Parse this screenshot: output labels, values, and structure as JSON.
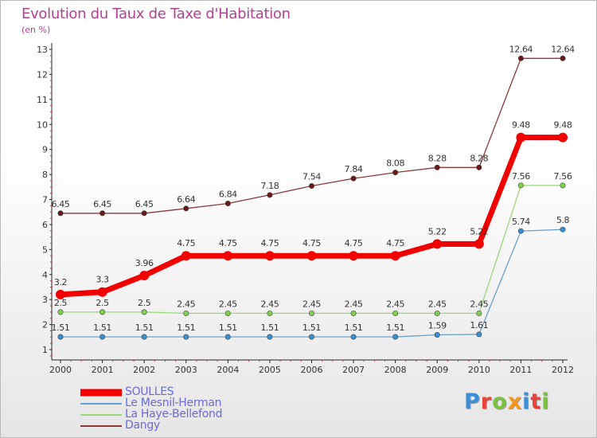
{
  "title": "Evolution du Taux de Taxe d'Habitation",
  "subtitle": "(en %)",
  "logo": {
    "text": "Proxiti",
    "letter_colors": [
      "#3c8fd6",
      "#e8423a",
      "#7cc242",
      "#f39a1e",
      "#3c8fd6",
      "#e8423a",
      "#7cc242"
    ]
  },
  "chart_data": {
    "type": "line",
    "title": "Evolution du Taux de Taxe d'Habitation",
    "ylabel": "(en %)",
    "xlabel": "",
    "x": [
      "2000",
      "2001",
      "2002",
      "2003",
      "2004",
      "2005",
      "2006",
      "2007",
      "2008",
      "2009",
      "2010",
      "2011",
      "2012"
    ],
    "ylim": [
      1,
      13
    ],
    "yticks": [
      1,
      2,
      3,
      4,
      5,
      6,
      7,
      8,
      9,
      10,
      11,
      12,
      13
    ],
    "grid": false,
    "legend_position": "bottom-left",
    "series": [
      {
        "name": "SOULLES",
        "color": "#f20000",
        "values": [
          3.2,
          3.3,
          3.96,
          4.75,
          4.75,
          4.75,
          4.75,
          4.75,
          4.75,
          5.22,
          5.22,
          9.48,
          9.48
        ],
        "labels": [
          "3.2",
          "3.3",
          "3.96",
          "4.75",
          "4.75",
          "4.75",
          "4.75",
          "4.75",
          "4.75",
          "5.22",
          "5.22",
          "9.48",
          "9.48"
        ]
      },
      {
        "name": "Le Mesnil-Herman",
        "color": "#6aa0cc",
        "values": [
          1.51,
          1.51,
          1.51,
          1.51,
          1.51,
          1.51,
          1.51,
          1.51,
          1.51,
          1.59,
          1.61,
          5.74,
          5.8
        ],
        "labels": [
          "1.51",
          "1.51",
          "1.51",
          "1.51",
          "1.51",
          "1.51",
          "1.51",
          "1.51",
          "1.51",
          "1.59",
          "1.61",
          "5.74",
          "5.8"
        ]
      },
      {
        "name": "La Haye-Bellefond",
        "color": "#9ad67a",
        "values": [
          2.5,
          2.5,
          2.5,
          2.45,
          2.45,
          2.45,
          2.45,
          2.45,
          2.45,
          2.45,
          2.45,
          7.56,
          7.56
        ],
        "labels": [
          "2.5",
          "2.5",
          "2.5",
          "2.45",
          "2.45",
          "2.45",
          "2.45",
          "2.45",
          "2.45",
          "2.45",
          "2.45",
          "7.56",
          "7.56"
        ]
      },
      {
        "name": "Dangy",
        "color": "#8a3838",
        "values": [
          6.45,
          6.45,
          6.45,
          6.64,
          6.84,
          7.18,
          7.54,
          7.84,
          8.08,
          8.28,
          8.28,
          12.64,
          12.64
        ],
        "labels": [
          "6.45",
          "6.45",
          "6.45",
          "6.64",
          "6.84",
          "7.18",
          "7.54",
          "7.84",
          "8.08",
          "8.28",
          "8.28",
          "12.64",
          "12.64"
        ]
      }
    ]
  }
}
